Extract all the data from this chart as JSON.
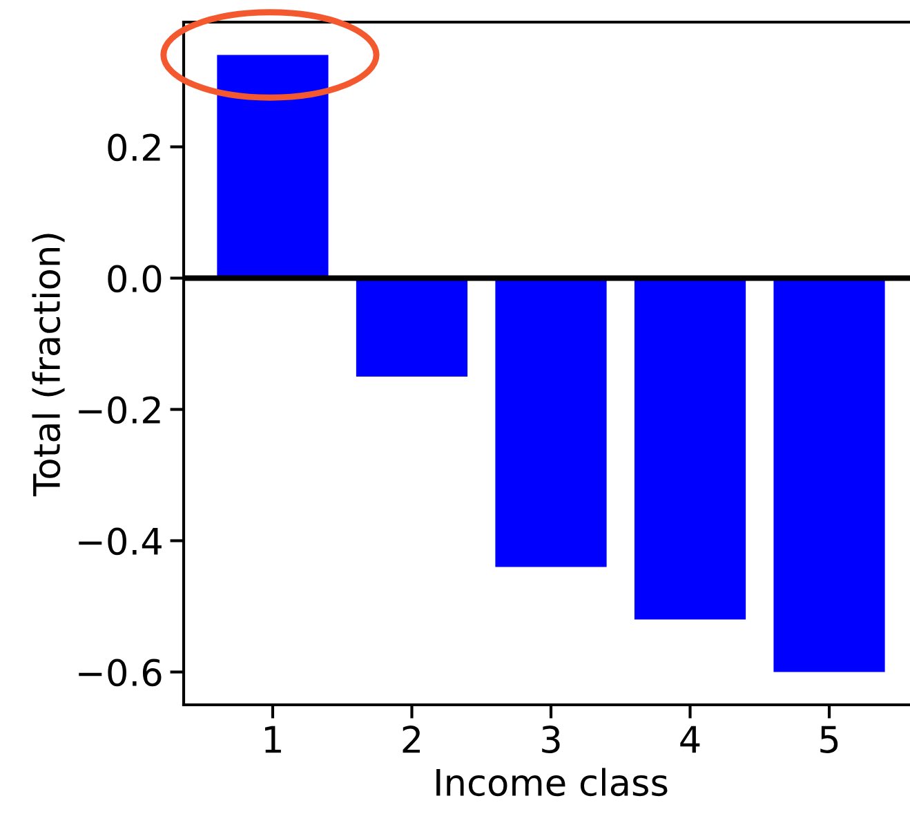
{
  "chart_data": {
    "type": "bar",
    "xlabel": "Income class",
    "ylabel": "Total (fraction)",
    "categories": [
      "1",
      "2",
      "3",
      "4",
      "5"
    ],
    "values": [
      0.34,
      -0.15,
      -0.44,
      -0.52,
      -0.6
    ],
    "color": "#0000ff",
    "ylim": [
      -0.65,
      0.39
    ],
    "yticks": [
      {
        "value": -0.6,
        "label": "−0.6"
      },
      {
        "value": -0.4,
        "label": "−0.4"
      },
      {
        "value": -0.2,
        "label": "−0.2"
      },
      {
        "value": 0,
        "label": "0.0"
      },
      0.2
    ],
    "ref_lines": [
      {
        "axis": "y",
        "value": 0,
        "color": "#000000"
      }
    ],
    "grid": false
  }
}
